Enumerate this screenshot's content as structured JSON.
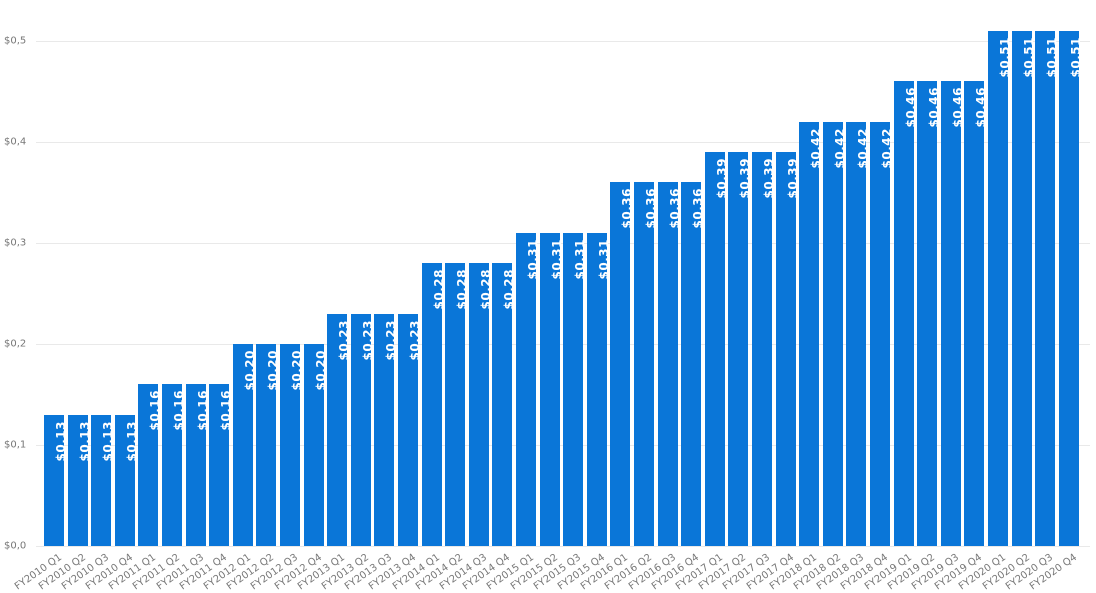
{
  "chart_data": {
    "type": "bar",
    "title": "",
    "xlabel": "",
    "ylabel": "",
    "ylim": [
      0,
      0.5
    ],
    "yticks": [
      "$0,0",
      "$0,1",
      "$0,2",
      "$0,3",
      "$0,4",
      "$0,5"
    ],
    "grid": true,
    "legend": null,
    "bar_color": "#0a76d8",
    "categories": [
      "FY2010 Q1",
      "FY2010 Q2",
      "FY2010 Q3",
      "FY2010 Q4",
      "FY2011 Q1",
      "FY2011 Q2",
      "FY2011 Q3",
      "FY2011 Q4",
      "FY2012 Q1",
      "FY2012 Q2",
      "FY2012 Q3",
      "FY2012 Q4",
      "FY2013 Q1",
      "FY2013 Q2",
      "FY2013 Q3",
      "FY2013 Q4",
      "FY2014 Q1",
      "FY2014 Q2",
      "FY2014 Q3",
      "FY2014 Q4",
      "FY2015 Q1",
      "FY2015 Q2",
      "FY2015 Q3",
      "FY2015 Q4",
      "FY2016 Q1",
      "FY2016 Q2",
      "FY2016 Q3",
      "FY2016 Q4",
      "FY2017 Q1",
      "FY2017 Q2",
      "FY2017 Q3",
      "FY2017 Q4",
      "FY2018 Q1",
      "FY2018 Q2",
      "FY2018 Q3",
      "FY2018 Q4",
      "FY2019 Q1",
      "FY2019 Q2",
      "FY2019 Q3",
      "FY2019 Q4",
      "FY2020 Q1",
      "FY2020 Q2",
      "FY2020 Q3",
      "FY2020 Q4"
    ],
    "values": [
      0.13,
      0.13,
      0.13,
      0.13,
      0.16,
      0.16,
      0.16,
      0.16,
      0.2,
      0.2,
      0.2,
      0.2,
      0.23,
      0.23,
      0.23,
      0.23,
      0.28,
      0.28,
      0.28,
      0.28,
      0.31,
      0.31,
      0.31,
      0.31,
      0.36,
      0.36,
      0.36,
      0.36,
      0.39,
      0.39,
      0.39,
      0.39,
      0.42,
      0.42,
      0.42,
      0.42,
      0.46,
      0.46,
      0.46,
      0.46,
      0.51,
      0.51,
      0.51,
      0.51
    ],
    "data_labels": [
      "$0,13",
      "$0,13",
      "$0,13",
      "$0,13",
      "$0,16",
      "$0,16",
      "$0,16",
      "$0,16",
      "$0,20",
      "$0,20",
      "$0,20",
      "$0,20",
      "$0,23",
      "$0,23",
      "$0,23",
      "$0,23",
      "$0,28",
      "$0,28",
      "$0,28",
      "$0,28",
      "$0,31",
      "$0,31",
      "$0,31",
      "$0,31",
      "$0,36",
      "$0,36",
      "$0,36",
      "$0,36",
      "$0,39",
      "$0,39",
      "$0,39",
      "$0,39",
      "$0,42",
      "$0,42",
      "$0,42",
      "$0,42",
      "$0,46",
      "$0,46",
      "$0,46",
      "$0,46",
      "$0,51",
      "$0,51",
      "$0,51",
      "$0,51"
    ]
  }
}
